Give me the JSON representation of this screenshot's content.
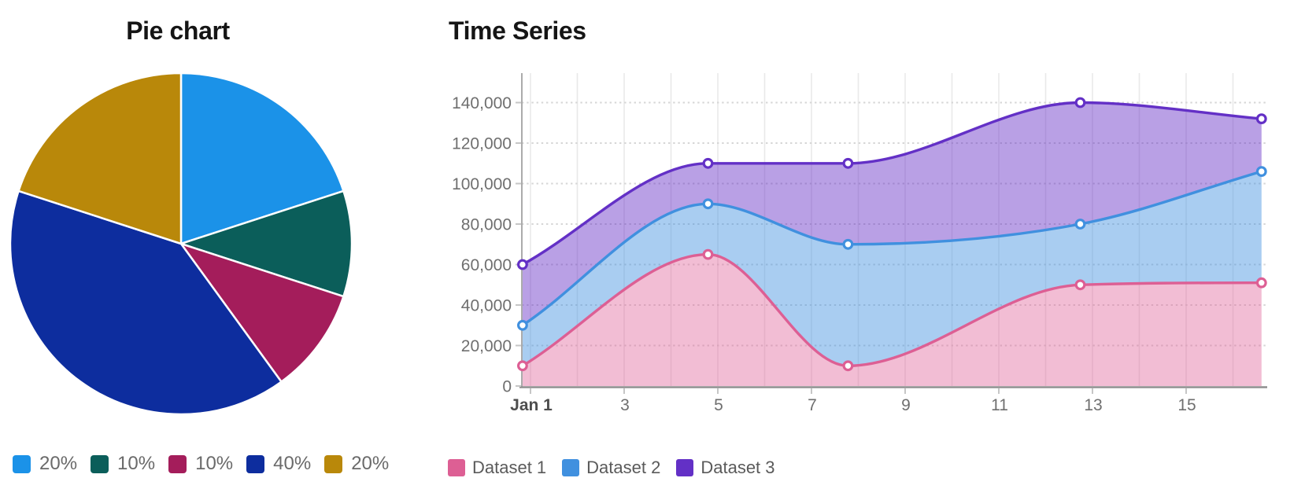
{
  "chart_data": [
    {
      "type": "pie",
      "title": "Pie chart",
      "direction": "clockwise",
      "start_angle_deg": 0,
      "legend_position": "bottom",
      "slices": [
        {
          "label": "20%",
          "value": 20,
          "color": "#1b92e8"
        },
        {
          "label": "10%",
          "value": 10,
          "color": "#0b5e5a"
        },
        {
          "label": "10%",
          "value": 10,
          "color": "#a41d5b"
        },
        {
          "label": "40%",
          "value": 40,
          "color": "#0d2d9e"
        },
        {
          "label": "20%",
          "value": 20,
          "color": "#b9880a"
        }
      ]
    },
    {
      "type": "area",
      "title": "Time Series",
      "curve": "monotone",
      "point_style": "open-circle",
      "fill_mode": "between-series",
      "legend_position": "bottom",
      "grid": {
        "horizontal": "dotted",
        "vertical": "solid-daily"
      },
      "x_axis": {
        "tick_labels": [
          "Jan 1",
          "3",
          "5",
          "7",
          "9",
          "11",
          "13",
          "15"
        ],
        "tick_days": [
          1,
          3,
          5,
          7,
          9,
          11,
          13,
          15
        ],
        "gridline_days": [
          1,
          2,
          3,
          4,
          5,
          6,
          7,
          8,
          9,
          10,
          11,
          12,
          13,
          14,
          15,
          16
        ],
        "major_first_tick": true
      },
      "y_axis": {
        "min": 0,
        "max": 155000,
        "tick_step": 20000,
        "tick_values": [
          0,
          20000,
          40000,
          60000,
          80000,
          100000,
          120000,
          140000
        ],
        "tick_labels": [
          "0",
          "20,000",
          "40,000",
          "60,000",
          "80,000",
          "100,000",
          "120,000",
          "140,000"
        ]
      },
      "x_dates": [
        "Jan 1",
        "Jan 5",
        "Jan 8",
        "Jan 13",
        "Jan 17"
      ],
      "x_plot_days": [
        0.83,
        4.79,
        7.78,
        12.74,
        16.61
      ],
      "series": [
        {
          "name": "Dataset 1",
          "line_color": "#dd5f94",
          "fill_color": "rgba(223,98,152,0.42)",
          "values": [
            10000,
            65000,
            10000,
            50000,
            51000
          ]
        },
        {
          "name": "Dataset 2",
          "line_color": "#4090df",
          "fill_color": "rgba(64,144,223,0.45)",
          "values": [
            30000,
            90000,
            70000,
            80000,
            106000
          ]
        },
        {
          "name": "Dataset 3",
          "line_color": "#6330c6",
          "fill_color": "rgba(99,44,197,0.45)",
          "values": [
            60000,
            110000,
            110000,
            140000,
            132000
          ]
        }
      ]
    }
  ]
}
